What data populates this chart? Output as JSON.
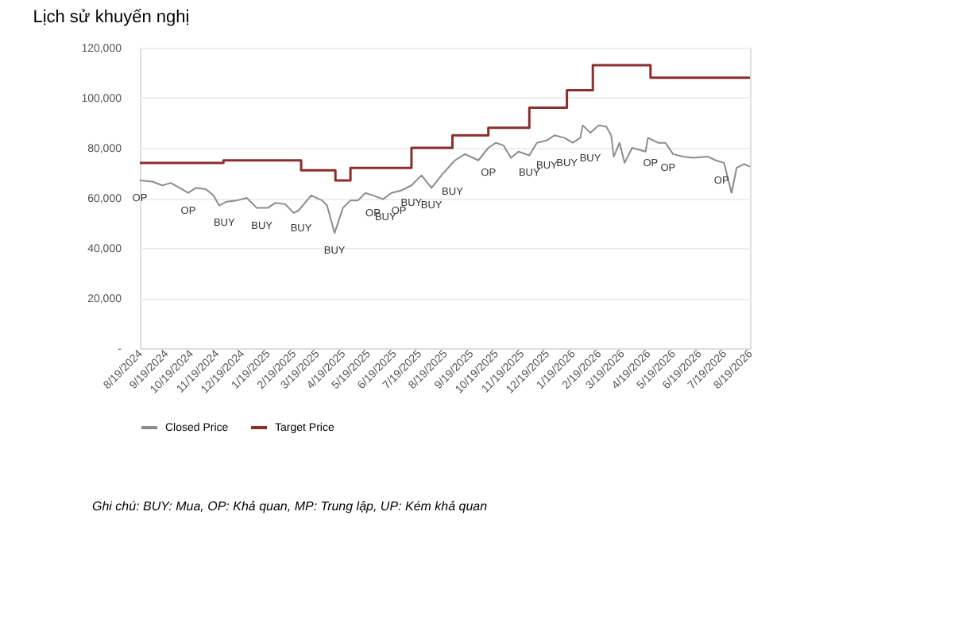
{
  "chart_data": {
    "type": "line",
    "title": "Lịch sử khuyến nghị",
    "xlim": [
      "2024-08-19",
      "2026-08-19"
    ],
    "xticks": [
      {
        "value": "2024-08-19",
        "label": "8/19/2024"
      },
      {
        "value": "2024-09-19",
        "label": "9/19/2024"
      },
      {
        "value": "2024-10-19",
        "label": "10/19/2024"
      },
      {
        "value": "2024-11-19",
        "label": "11/19/2024"
      },
      {
        "value": "2024-12-19",
        "label": "12/19/2024"
      },
      {
        "value": "2025-01-19",
        "label": "1/19/2025"
      },
      {
        "value": "2025-02-19",
        "label": "2/19/2025"
      },
      {
        "value": "2025-03-19",
        "label": "3/19/2025"
      },
      {
        "value": "2025-04-19",
        "label": "4/19/2025"
      },
      {
        "value": "2025-05-19",
        "label": "5/19/2025"
      },
      {
        "value": "2025-06-19",
        "label": "6/19/2025"
      },
      {
        "value": "2025-07-19",
        "label": "7/19/2025"
      },
      {
        "value": "2025-08-19",
        "label": "8/19/2025"
      },
      {
        "value": "2025-09-19",
        "label": "9/19/2025"
      },
      {
        "value": "2025-10-19",
        "label": "10/19/2025"
      },
      {
        "value": "2025-11-19",
        "label": "11/19/2025"
      },
      {
        "value": "2025-12-19",
        "label": "12/19/2025"
      },
      {
        "value": "2026-01-19",
        "label": "1/19/2026"
      },
      {
        "value": "2026-02-19",
        "label": "2/19/2026"
      },
      {
        "value": "2026-03-19",
        "label": "3/19/2026"
      },
      {
        "value": "2026-04-19",
        "label": "4/19/2026"
      },
      {
        "value": "2026-05-19",
        "label": "5/19/2026"
      },
      {
        "value": "2026-06-19",
        "label": "6/19/2026"
      },
      {
        "value": "2026-07-19",
        "label": "7/19/2026"
      },
      {
        "value": "2026-08-19",
        "label": "8/19/2026"
      }
    ],
    "ylim": [
      0,
      120000
    ],
    "yticks": [
      {
        "value": 0,
        "label": "-"
      },
      {
        "value": 20000,
        "label": "20,000"
      },
      {
        "value": 40000,
        "label": "40,000"
      },
      {
        "value": 60000,
        "label": "60,000"
      },
      {
        "value": 80000,
        "label": "80,000"
      },
      {
        "value": 100000,
        "label": "100,000"
      },
      {
        "value": 120000,
        "label": "120,000"
      }
    ],
    "grid": "y",
    "legend": "bottom",
    "line_style": "solid",
    "marker": "none",
    "series": [
      {
        "name": "Closed Price",
        "color": "#8c8c8c",
        "type": "line",
        "x": [
          "2024-08-19",
          "2024-09-03",
          "2024-09-15",
          "2024-09-25",
          "2024-10-16",
          "2024-10-25",
          "2024-11-06",
          "2024-11-15",
          "2024-11-22",
          "2024-12-01",
          "2024-12-13",
          "2024-12-25",
          "2025-01-06",
          "2025-01-19",
          "2025-01-28",
          "2025-02-09",
          "2025-02-19",
          "2025-02-25",
          "2025-03-12",
          "2025-03-25",
          "2025-03-31",
          "2025-04-09",
          "2025-04-19",
          "2025-04-28",
          "2025-05-07",
          "2025-05-16",
          "2025-05-25",
          "2025-06-06",
          "2025-06-16",
          "2025-06-28",
          "2025-07-10",
          "2025-07-22",
          "2025-08-03",
          "2025-08-16",
          "2025-08-31",
          "2025-09-12",
          "2025-09-28",
          "2025-10-10",
          "2025-10-19",
          "2025-10-28",
          "2025-11-06",
          "2025-11-15",
          "2025-11-28",
          "2025-12-07",
          "2025-12-19",
          "2025-12-28",
          "2026-01-09",
          "2026-01-19",
          "2026-01-28",
          "2026-01-31",
          "2026-02-09",
          "2026-02-19",
          "2026-02-28",
          "2026-03-06",
          "2026-03-09",
          "2026-03-16",
          "2026-03-22",
          "2026-03-31",
          "2026-04-16",
          "2026-04-19",
          "2026-05-01",
          "2026-05-10",
          "2026-05-19",
          "2026-05-31",
          "2026-06-12",
          "2026-06-30",
          "2026-07-09",
          "2026-07-19",
          "2026-07-28",
          "2026-08-03",
          "2026-08-12",
          "2026-08-19"
        ],
        "values": [
          67000,
          66500,
          65000,
          66000,
          62000,
          64000,
          63500,
          61000,
          57000,
          58500,
          59000,
          60000,
          56000,
          56000,
          58000,
          57500,
          54000,
          55000,
          61000,
          59000,
          57000,
          46000,
          56000,
          59000,
          59000,
          62000,
          61000,
          59500,
          62000,
          63000,
          65000,
          69000,
          64000,
          69500,
          75000,
          77500,
          75000,
          80000,
          82000,
          81000,
          76000,
          78500,
          77000,
          82000,
          83000,
          85000,
          84000,
          82000,
          84000,
          89000,
          86000,
          89000,
          88500,
          85000,
          76500,
          82000,
          74000,
          80000,
          78500,
          84000,
          82000,
          82000,
          77500,
          76500,
          76000,
          76500,
          75000,
          74000,
          62000,
          72000,
          73500,
          72500
        ]
      },
      {
        "name": "Target Price",
        "color": "#8b2e2e",
        "type": "step",
        "x": [
          "2024-08-19",
          "2024-11-27",
          "2025-02-28",
          "2025-04-10",
          "2025-04-28",
          "2025-07-10",
          "2025-08-28",
          "2025-10-10",
          "2025-11-28",
          "2026-01-12",
          "2026-02-12",
          "2026-04-22",
          "2026-08-19"
        ],
        "values": [
          74000,
          75000,
          71000,
          67000,
          72000,
          80000,
          85000,
          88000,
          96000,
          103000,
          113000,
          108000,
          108000
        ]
      }
    ],
    "annotations": [
      {
        "text": "OP",
        "x": "2024-08-19",
        "y": 67000
      },
      {
        "text": "OP",
        "x": "2024-10-16",
        "y": 62000
      },
      {
        "text": "BUY",
        "x": "2024-11-28",
        "y": 57000
      },
      {
        "text": "BUY",
        "x": "2025-01-12",
        "y": 56000
      },
      {
        "text": "BUY",
        "x": "2025-02-28",
        "y": 55000
      },
      {
        "text": "BUY",
        "x": "2025-04-09",
        "y": 46000
      },
      {
        "text": "OP",
        "x": "2025-05-25",
        "y": 61000
      },
      {
        "text": "BUY",
        "x": "2025-06-09",
        "y": 59500
      },
      {
        "text": "OP",
        "x": "2025-06-25",
        "y": 62000
      },
      {
        "text": "BUY",
        "x": "2025-07-10",
        "y": 65000
      },
      {
        "text": "BUY",
        "x": "2025-08-03",
        "y": 64000
      },
      {
        "text": "BUY",
        "x": "2025-08-28",
        "y": 69500
      },
      {
        "text": "OP",
        "x": "2025-10-10",
        "y": 77000
      },
      {
        "text": "BUY",
        "x": "2025-11-28",
        "y": 77000
      },
      {
        "text": "BUY",
        "x": "2025-12-19",
        "y": 80000
      },
      {
        "text": "BUY",
        "x": "2026-01-12",
        "y": 81000
      },
      {
        "text": "BUY",
        "x": "2026-02-09",
        "y": 83000
      },
      {
        "text": "OP",
        "x": "2026-04-22",
        "y": 81000
      },
      {
        "text": "OP",
        "x": "2026-05-13",
        "y": 79000
      },
      {
        "text": "OP",
        "x": "2026-07-16",
        "y": 74000
      },
      "Ghi chú: BUY: Mua, OP: Khả quan, MP: Trung lập, UP: Kém khả quan"
    ]
  }
}
